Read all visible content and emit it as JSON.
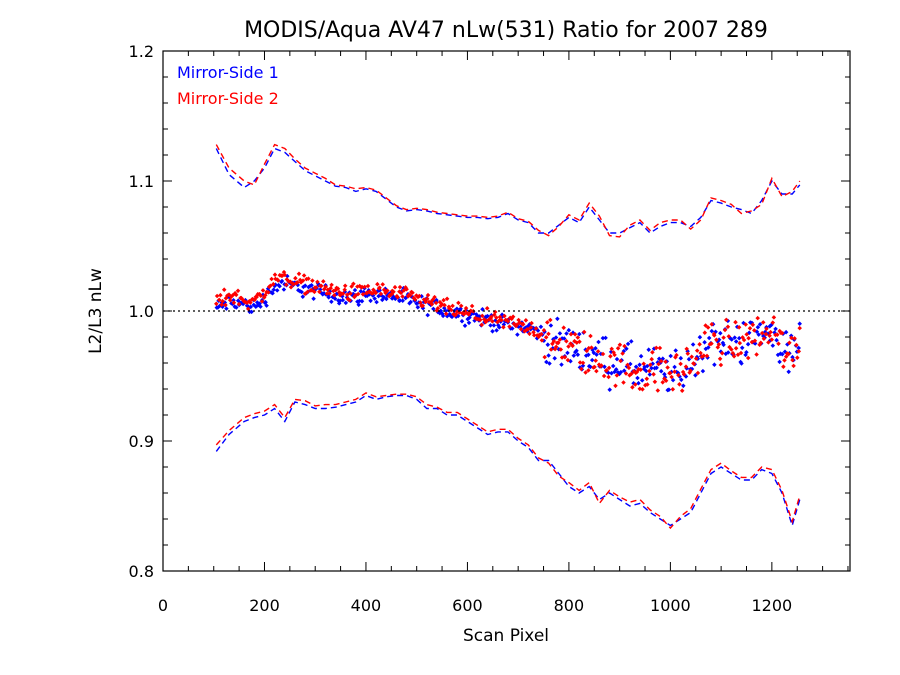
{
  "chart_data": {
    "type": "scatter",
    "title": "MODIS/Aqua AV47 nLw(531) Ratio for 2007 289",
    "xlabel": "Scan Pixel",
    "ylabel": "L2/L3 nLw",
    "xlim": [
      0,
      1354
    ],
    "ylim": [
      0.8,
      1.2
    ],
    "xticks": [
      0,
      200,
      400,
      600,
      800,
      1000,
      1200
    ],
    "xtick_labels": [
      "0",
      "200",
      "400",
      "600",
      "800",
      "1000",
      "1200"
    ],
    "yticks": [
      0.8,
      0.9,
      1.0,
      1.1,
      1.2
    ],
    "ytick_labels": [
      "0.8",
      "0.9",
      "1.0",
      "1.1",
      "1.2"
    ],
    "reference_line": 1.0,
    "legend_position": "top-left",
    "series": [
      {
        "name": "Mirror-Side 1",
        "color": "#0000ff",
        "offset": -0.001,
        "x": [
          105,
          130,
          160,
          180,
          200,
          220,
          240,
          260,
          280,
          300,
          320,
          340,
          360,
          380,
          400,
          420,
          440,
          460,
          480,
          500,
          520,
          540,
          560,
          580,
          600,
          620,
          640,
          660,
          680,
          700,
          720,
          740,
          760,
          780,
          800,
          820,
          840,
          860,
          880,
          900,
          920,
          940,
          960,
          980,
          1000,
          1020,
          1040,
          1060,
          1080,
          1100,
          1120,
          1140,
          1160,
          1180,
          1200,
          1220,
          1240,
          1255
        ],
        "y": [
          1.003,
          1.008,
          1.006,
          1.004,
          1.01,
          1.02,
          1.022,
          1.02,
          1.018,
          1.016,
          1.015,
          1.013,
          1.012,
          1.012,
          1.013,
          1.014,
          1.013,
          1.012,
          1.009,
          1.007,
          1.005,
          1.004,
          1.001,
          0.999,
          0.998,
          0.996,
          0.994,
          0.992,
          0.991,
          0.99,
          0.988,
          0.985,
          0.978,
          0.972,
          0.975,
          0.972,
          0.968,
          0.965,
          0.962,
          0.962,
          0.958,
          0.955,
          0.957,
          0.955,
          0.952,
          0.955,
          0.96,
          0.97,
          0.978,
          0.977,
          0.975,
          0.978,
          0.98,
          0.982,
          0.985,
          0.975,
          0.965,
          0.978
        ],
        "upper_bound_y": [
          1.125,
          1.105,
          1.095,
          1.1,
          1.11,
          1.125,
          1.122,
          1.115,
          1.108,
          1.104,
          1.1,
          1.096,
          1.095,
          1.092,
          1.094,
          1.092,
          1.086,
          1.08,
          1.077,
          1.078,
          1.077,
          1.075,
          1.074,
          1.073,
          1.072,
          1.072,
          1.071,
          1.072,
          1.075,
          1.07,
          1.068,
          1.06,
          1.06,
          1.066,
          1.072,
          1.068,
          1.08,
          1.07,
          1.06,
          1.06,
          1.064,
          1.068,
          1.06,
          1.065,
          1.068,
          1.068,
          1.065,
          1.072,
          1.085,
          1.083,
          1.08,
          1.078,
          1.075,
          1.085,
          1.1,
          1.09,
          1.09,
          1.097
        ],
        "lower_bound_y": [
          0.892,
          0.905,
          0.915,
          0.918,
          0.92,
          0.925,
          0.915,
          0.93,
          0.928,
          0.925,
          0.925,
          0.926,
          0.928,
          0.93,
          0.935,
          0.932,
          0.934,
          0.935,
          0.935,
          0.932,
          0.925,
          0.925,
          0.92,
          0.92,
          0.915,
          0.91,
          0.905,
          0.907,
          0.907,
          0.9,
          0.895,
          0.885,
          0.885,
          0.875,
          0.865,
          0.86,
          0.865,
          0.855,
          0.86,
          0.855,
          0.85,
          0.852,
          0.845,
          0.84,
          0.835,
          0.84,
          0.845,
          0.86,
          0.875,
          0.88,
          0.875,
          0.87,
          0.87,
          0.878,
          0.875,
          0.86,
          0.835,
          0.855
        ]
      },
      {
        "name": "Mirror-Side 2",
        "color": "#ff0000",
        "offset": 0.001,
        "x": [
          105,
          130,
          160,
          180,
          200,
          220,
          240,
          260,
          280,
          300,
          320,
          340,
          360,
          380,
          400,
          420,
          440,
          460,
          480,
          500,
          520,
          540,
          560,
          580,
          600,
          620,
          640,
          660,
          680,
          700,
          720,
          740,
          760,
          780,
          800,
          820,
          840,
          860,
          880,
          900,
          920,
          940,
          960,
          980,
          1000,
          1020,
          1040,
          1060,
          1080,
          1100,
          1120,
          1140,
          1160,
          1180,
          1200,
          1220,
          1240,
          1255
        ],
        "y": [
          1.006,
          1.011,
          1.008,
          1.006,
          1.013,
          1.023,
          1.025,
          1.022,
          1.02,
          1.018,
          1.016,
          1.014,
          1.013,
          1.013,
          1.014,
          1.015,
          1.014,
          1.012,
          1.01,
          1.008,
          1.006,
          1.004,
          1.001,
          0.999,
          0.997,
          0.995,
          0.993,
          0.991,
          0.99,
          0.989,
          0.987,
          0.983,
          0.975,
          0.97,
          0.973,
          0.969,
          0.964,
          0.962,
          0.958,
          0.958,
          0.955,
          0.952,
          0.954,
          0.953,
          0.95,
          0.953,
          0.958,
          0.968,
          0.977,
          0.976,
          0.974,
          0.977,
          0.979,
          0.981,
          0.984,
          0.973,
          0.963,
          0.979
        ],
        "upper_bound_y": [
          1.128,
          1.11,
          1.1,
          1.097,
          1.113,
          1.128,
          1.125,
          1.117,
          1.11,
          1.106,
          1.102,
          1.097,
          1.096,
          1.094,
          1.095,
          1.093,
          1.087,
          1.081,
          1.078,
          1.079,
          1.078,
          1.076,
          1.075,
          1.074,
          1.073,
          1.073,
          1.072,
          1.073,
          1.076,
          1.071,
          1.069,
          1.062,
          1.058,
          1.065,
          1.074,
          1.07,
          1.083,
          1.073,
          1.058,
          1.057,
          1.066,
          1.07,
          1.062,
          1.068,
          1.07,
          1.07,
          1.063,
          1.07,
          1.087,
          1.085,
          1.082,
          1.075,
          1.077,
          1.082,
          1.102,
          1.088,
          1.092,
          1.1
        ],
        "lower_bound_y": [
          0.897,
          0.908,
          0.918,
          0.921,
          0.923,
          0.928,
          0.918,
          0.932,
          0.931,
          0.927,
          0.928,
          0.928,
          0.93,
          0.932,
          0.937,
          0.934,
          0.935,
          0.936,
          0.936,
          0.934,
          0.928,
          0.926,
          0.922,
          0.922,
          0.917,
          0.912,
          0.907,
          0.909,
          0.909,
          0.902,
          0.897,
          0.887,
          0.883,
          0.873,
          0.868,
          0.862,
          0.868,
          0.852,
          0.862,
          0.857,
          0.853,
          0.855,
          0.847,
          0.842,
          0.833,
          0.842,
          0.848,
          0.863,
          0.878,
          0.883,
          0.877,
          0.872,
          0.872,
          0.88,
          0.878,
          0.862,
          0.838,
          0.858
        ]
      }
    ]
  }
}
